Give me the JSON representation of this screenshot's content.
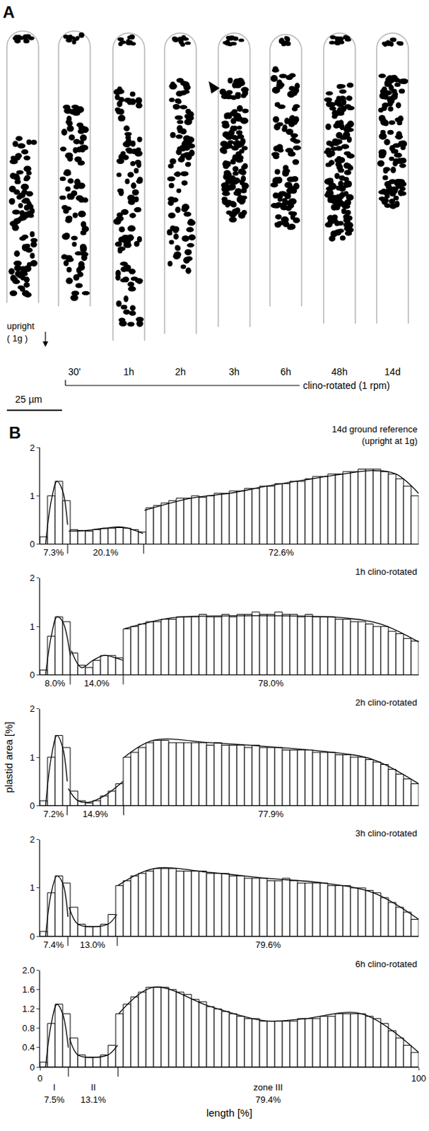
{
  "panel_a": {
    "letter": "A",
    "cells": [
      null,
      "30'",
      "1h",
      "2h",
      "3h",
      "6h",
      "48h",
      "14d"
    ],
    "upright": "upright",
    "gravity": "( 1g )",
    "condition": "clino-rotated (1 rpm)",
    "scale_bar": "25 µm"
  },
  "panel_b_letter": "B",
  "chart_data": [
    {
      "type": "bar",
      "title": "14d ground reference (upright at 1g)",
      "xlim": [
        0,
        100
      ],
      "ylim": [
        0,
        2
      ],
      "yticks": [
        0,
        1,
        2
      ],
      "tick_labels": "y",
      "grid": false,
      "x": [
        1,
        3,
        5,
        7,
        9,
        11,
        13,
        15,
        17,
        19,
        21,
        23,
        25,
        27,
        29,
        31,
        33,
        35,
        37,
        39,
        41,
        43,
        45,
        47,
        49,
        51,
        53,
        55,
        57,
        59,
        61,
        63,
        65,
        67,
        69,
        71,
        73,
        75,
        77,
        79,
        81,
        83,
        85,
        87,
        89,
        91,
        93,
        95,
        97,
        99
      ],
      "series": [
        {
          "type": "bar",
          "color": "#000000",
          "values": [
            0.15,
            1.0,
            1.3,
            0.9,
            0.3,
            0.28,
            0.27,
            0.3,
            0.32,
            0.33,
            0.34,
            0.33,
            0.3,
            0.25,
            0.75,
            0.8,
            0.85,
            0.9,
            0.95,
            0.95,
            1.0,
            0.97,
            1.0,
            1.05,
            1.05,
            1.1,
            1.1,
            1.15,
            1.15,
            1.2,
            1.2,
            1.25,
            1.25,
            1.3,
            1.3,
            1.35,
            1.4,
            1.4,
            1.45,
            1.45,
            1.5,
            1.5,
            1.55,
            1.55,
            1.55,
            1.5,
            1.45,
            1.35,
            1.2,
            1.0
          ]
        },
        {
          "type": "line",
          "color": "#000000",
          "x": [
            1.5,
            3,
            4.5,
            6,
            7.3,
            7.45,
            7.6,
            12,
            17,
            22,
            27.2,
            27.3,
            27.6,
            40,
            50,
            60,
            70,
            80,
            88,
            94,
            100
          ],
          "values": [
            0,
            0.9,
            1.3,
            1.1,
            0.4,
            null,
            0.27,
            0.28,
            0.33,
            0.35,
            0.22,
            null,
            0.7,
            0.95,
            1.05,
            1.2,
            1.33,
            1.45,
            1.52,
            1.45,
            1.05
          ]
        }
      ],
      "zones": [
        {
          "value": 7.3,
          "label": "7.3%"
        },
        {
          "value": 20.1,
          "label": "20.1%"
        },
        {
          "value": 72.6,
          "label": "72.6%"
        }
      ]
    },
    {
      "type": "bar",
      "title": "1h clino-rotated",
      "xlim": [
        0,
        100
      ],
      "ylim": [
        0,
        2
      ],
      "yticks": [
        0,
        1,
        2
      ],
      "tick_labels": "y",
      "grid": false,
      "x": [
        1,
        3,
        5,
        7,
        9,
        11,
        13,
        15,
        17,
        19,
        21,
        23,
        25,
        27,
        29,
        31,
        33,
        35,
        37,
        39,
        41,
        43,
        45,
        47,
        49,
        51,
        53,
        55,
        57,
        59,
        61,
        63,
        65,
        67,
        69,
        71,
        73,
        75,
        77,
        79,
        81,
        83,
        85,
        87,
        89,
        91,
        93,
        95,
        97,
        99
      ],
      "series": [
        {
          "type": "bar",
          "color": "#000000",
          "values": [
            0.1,
            0.8,
            1.2,
            1.1,
            0.45,
            0.2,
            0.15,
            0.3,
            0.4,
            0.4,
            0.35,
            0.95,
            1.0,
            1.05,
            1.1,
            1.1,
            1.15,
            1.15,
            1.2,
            1.2,
            1.2,
            1.25,
            1.2,
            1.2,
            1.25,
            1.2,
            1.25,
            1.25,
            1.3,
            1.25,
            1.25,
            1.3,
            1.25,
            1.25,
            1.2,
            1.25,
            1.2,
            1.2,
            1.2,
            1.15,
            1.15,
            1.1,
            1.1,
            1.05,
            1.0,
            1.0,
            0.9,
            0.85,
            0.75,
            0.7
          ]
        },
        {
          "type": "line",
          "color": "#000000",
          "x": [
            1.5,
            3,
            4.5,
            6,
            8,
            8.1,
            8.3,
            11,
            14,
            17,
            20,
            21.9,
            22.0,
            22.2,
            35,
            50,
            65,
            80,
            90,
            100
          ],
          "values": [
            0,
            0.8,
            1.2,
            1.1,
            0.4,
            null,
            0.5,
            0.15,
            0.3,
            0.4,
            0.35,
            0.3,
            null,
            0.95,
            1.18,
            1.22,
            1.22,
            1.18,
            1.05,
            0.68
          ]
        }
      ],
      "zones": [
        {
          "value": 8.0,
          "label": "8.0%"
        },
        {
          "value": 14.0,
          "label": "14.0%"
        },
        {
          "value": 78.0,
          "label": "78.0%"
        }
      ]
    },
    {
      "type": "bar",
      "title": "2h clino-rotated",
      "ylabel": "plastid area [%]",
      "xlim": [
        0,
        100
      ],
      "ylim": [
        0,
        2
      ],
      "yticks": [
        0,
        1,
        2
      ],
      "tick_labels": "y",
      "grid": false,
      "x": [
        1,
        3,
        5,
        7,
        9,
        11,
        13,
        15,
        17,
        19,
        21,
        23,
        25,
        27,
        29,
        31,
        33,
        35,
        37,
        39,
        41,
        43,
        45,
        47,
        49,
        51,
        53,
        55,
        57,
        59,
        61,
        63,
        65,
        67,
        69,
        71,
        73,
        75,
        77,
        79,
        81,
        83,
        85,
        87,
        89,
        91,
        93,
        95,
        97,
        99
      ],
      "series": [
        {
          "type": "bar",
          "color": "#000000",
          "values": [
            0.1,
            1.0,
            1.45,
            1.2,
            0.3,
            0.1,
            0.05,
            0.1,
            0.2,
            0.3,
            0.45,
            1.0,
            1.1,
            1.2,
            1.3,
            1.35,
            1.35,
            1.3,
            1.3,
            1.3,
            1.3,
            1.3,
            1.25,
            1.3,
            1.25,
            1.25,
            1.25,
            1.2,
            1.25,
            1.2,
            1.2,
            1.2,
            1.15,
            1.15,
            1.15,
            1.15,
            1.1,
            1.1,
            1.1,
            1.05,
            1.05,
            1.0,
            1.0,
            0.95,
            0.9,
            0.85,
            0.75,
            0.65,
            0.55,
            0.45
          ]
        },
        {
          "type": "line",
          "color": "#000000",
          "x": [
            1.5,
            3,
            4.5,
            6,
            7.2,
            7.3,
            7.5,
            10,
            13,
            17,
            22,
            22.1,
            22.3,
            30,
            45,
            60,
            75,
            88,
            100
          ],
          "values": [
            0,
            1.0,
            1.45,
            1.2,
            0.5,
            null,
            0.35,
            0.1,
            0.07,
            0.2,
            0.5,
            null,
            1.0,
            1.35,
            1.3,
            1.22,
            1.12,
            0.95,
            0.45
          ]
        }
      ],
      "zones": [
        {
          "value": 7.2,
          "label": "7.2%"
        },
        {
          "value": 14.9,
          "label": "14.9%"
        },
        {
          "value": 77.9,
          "label": "77.9%"
        }
      ]
    },
    {
      "type": "bar",
      "title": "3h clino-rotated",
      "xlim": [
        0,
        100
      ],
      "ylim": [
        0,
        2
      ],
      "yticks": [
        0,
        1,
        2
      ],
      "tick_labels": "y",
      "grid": false,
      "x": [
        1,
        3,
        5,
        7,
        9,
        11,
        13,
        15,
        17,
        19,
        21,
        23,
        25,
        27,
        29,
        31,
        33,
        35,
        37,
        39,
        41,
        43,
        45,
        47,
        49,
        51,
        53,
        55,
        57,
        59,
        61,
        63,
        65,
        67,
        69,
        71,
        73,
        75,
        77,
        79,
        81,
        83,
        85,
        87,
        89,
        91,
        93,
        95,
        97,
        99
      ],
      "series": [
        {
          "type": "bar",
          "color": "#000000",
          "values": [
            0.1,
            0.9,
            1.25,
            1.1,
            0.6,
            0.25,
            0.2,
            0.2,
            0.25,
            0.45,
            1.05,
            1.15,
            1.25,
            1.3,
            1.35,
            1.4,
            1.4,
            1.4,
            1.35,
            1.35,
            1.35,
            1.35,
            1.3,
            1.3,
            1.3,
            1.25,
            1.25,
            1.2,
            1.2,
            1.2,
            1.15,
            1.15,
            1.2,
            1.15,
            1.1,
            1.1,
            1.1,
            1.1,
            1.05,
            1.05,
            1.05,
            1.0,
            1.0,
            0.95,
            0.9,
            0.8,
            0.7,
            0.6,
            0.5,
            0.35
          ]
        },
        {
          "type": "line",
          "color": "#000000",
          "x": [
            1.5,
            3,
            4.5,
            6,
            7.4,
            7.5,
            7.7,
            10,
            14,
            18,
            20.3,
            20.4,
            20.6,
            30,
            45,
            60,
            75,
            88,
            100
          ],
          "values": [
            0,
            0.9,
            1.25,
            1.1,
            0.4,
            null,
            0.6,
            0.25,
            0.2,
            0.25,
            0.45,
            null,
            1.05,
            1.4,
            1.32,
            1.2,
            1.1,
            0.9,
            0.35
          ]
        }
      ],
      "zones": [
        {
          "value": 7.4,
          "label": "7.4%"
        },
        {
          "value": 13.0,
          "label": "13.0%"
        },
        {
          "value": 79.6,
          "label": "79.6%"
        }
      ]
    },
    {
      "type": "bar",
      "title": "6h clino-rotated",
      "xlabel": "length [%]",
      "xlim": [
        0,
        100
      ],
      "xticks": [
        0,
        100
      ],
      "ylim": [
        0,
        2
      ],
      "yticks": [
        0,
        0.4,
        0.8,
        1.2,
        1.6,
        {
          "value": 2,
          "label": "2.0"
        }
      ],
      "grid": false,
      "x": [
        1,
        3,
        5,
        7,
        9,
        11,
        13,
        15,
        17,
        19,
        21,
        23,
        25,
        27,
        29,
        31,
        33,
        35,
        37,
        39,
        41,
        43,
        45,
        47,
        49,
        51,
        53,
        55,
        57,
        59,
        61,
        63,
        65,
        67,
        69,
        71,
        73,
        75,
        77,
        79,
        81,
        83,
        85,
        87,
        89,
        91,
        93,
        95,
        97,
        99
      ],
      "series": [
        {
          "type": "bar",
          "color": "#000000",
          "values": [
            0.1,
            0.9,
            1.3,
            1.1,
            0.6,
            0.25,
            0.2,
            0.2,
            0.25,
            0.45,
            1.1,
            1.3,
            1.45,
            1.55,
            1.65,
            1.65,
            1.65,
            1.6,
            1.55,
            1.5,
            1.4,
            1.35,
            1.25,
            1.2,
            1.15,
            1.1,
            1.05,
            1.0,
            1.0,
            0.95,
            0.95,
            0.95,
            0.95,
            0.95,
            1.0,
            1.0,
            1.0,
            1.05,
            1.05,
            1.1,
            1.1,
            1.1,
            1.1,
            1.05,
            1.0,
            0.9,
            0.75,
            0.6,
            0.45,
            0.3
          ]
        },
        {
          "type": "line",
          "color": "#000000",
          "x": [
            1.5,
            3,
            4.5,
            6,
            7.5,
            7.6,
            7.8,
            10,
            14,
            18,
            20.5,
            20.6,
            20.8,
            30,
            45,
            60,
            70,
            85,
            100
          ],
          "values": [
            0,
            0.9,
            1.3,
            1.1,
            0.4,
            null,
            0.6,
            0.25,
            0.2,
            0.25,
            0.45,
            null,
            1.1,
            1.65,
            1.25,
            0.95,
            1.0,
            1.1,
            0.3
          ]
        }
      ],
      "zones": [
        {
          "value": 7.5,
          "label": "7.5%",
          "name": "I"
        },
        {
          "value": 13.1,
          "label": "13.1%",
          "name": "II"
        },
        {
          "value": 79.4,
          "label": "79.4%",
          "name": "zone III"
        }
      ]
    }
  ]
}
